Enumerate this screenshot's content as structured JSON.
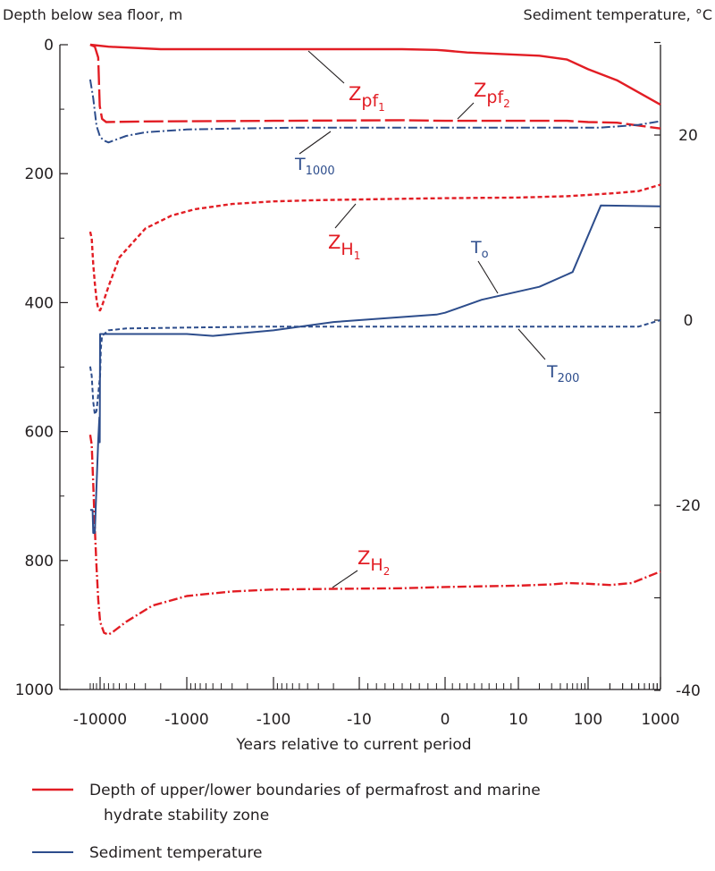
{
  "chart_data": {
    "type": "line",
    "title": "",
    "ylabel_left": "Depth below sea floor, m",
    "ylabel_right": "Sediment temperature, °C",
    "xlabel": "Years relative to current period",
    "x_scale": "symmetric log of time (log10 of years before/after the current period)",
    "x_ticks": [
      "-10000",
      "-1000",
      "-100",
      "-10",
      "0",
      "10",
      "100",
      "1000"
    ],
    "y_left_ticks": [
      "0",
      "200",
      "400",
      "600",
      "800",
      "1000"
    ],
    "y_left_range": [
      0,
      1000
    ],
    "y_left_inverted": true,
    "y_right_ticks": [
      "20",
      "0",
      "-20",
      "-40"
    ],
    "y_right_range": [
      -40,
      30
    ],
    "grid": false,
    "legend_position": "bottom",
    "legend": [
      {
        "label": "Depth of upper/lower boundaries of permafrost and marine",
        "label_cont": "hydrate stability zone",
        "color": "#e21d24"
      },
      {
        "label": "Sediment temperature",
        "color": "#2d4d8c"
      }
    ],
    "series": [
      {
        "label_main": "Z",
        "label_sub": "pf",
        "label_subsub": "1",
        "axis": "depth",
        "color": "#e21d24",
        "style": "solid",
        "points": [
          [
            -13000,
            0
          ],
          [
            -8000,
            3
          ],
          [
            -2000,
            7
          ],
          [
            -300,
            7
          ],
          [
            -30,
            7
          ],
          [
            -5,
            7
          ],
          [
            -1,
            8
          ],
          [
            0,
            9
          ],
          [
            3,
            12
          ],
          [
            20,
            17
          ],
          [
            50,
            23
          ],
          [
            100,
            38
          ],
          [
            250,
            55
          ],
          [
            1000,
            93
          ]
        ]
      },
      {
        "label_main": "Z",
        "label_sub": "pf",
        "label_subsub": "2",
        "axis": "depth",
        "color": "#e21d24",
        "style": "long-dash",
        "points": [
          [
            -13000,
            0
          ],
          [
            -11500,
            3
          ],
          [
            -10500,
            20
          ],
          [
            -10300,
            60
          ],
          [
            -10100,
            95
          ],
          [
            -9500,
            115
          ],
          [
            -8500,
            120
          ],
          [
            -3000,
            119
          ],
          [
            -100,
            118
          ],
          [
            -5,
            117
          ],
          [
            0,
            118
          ],
          [
            10,
            118
          ],
          [
            50,
            118
          ],
          [
            100,
            120
          ],
          [
            250,
            121
          ],
          [
            1000,
            130
          ]
        ]
      },
      {
        "label_main": "Z",
        "label_sub": "H",
        "label_subsub": "1",
        "axis": "depth",
        "color": "#e21d24",
        "style": "short-dash",
        "points": [
          [
            -13000,
            290
          ],
          [
            -12500,
            300
          ],
          [
            -12000,
            340
          ],
          [
            -11500,
            370
          ],
          [
            -11000,
            395
          ],
          [
            -10500,
            410
          ],
          [
            -10000,
            412
          ],
          [
            -9500,
            405
          ],
          [
            -8000,
            375
          ],
          [
            -6000,
            330
          ],
          [
            -3000,
            285
          ],
          [
            -1500,
            265
          ],
          [
            -800,
            255
          ],
          [
            -300,
            247
          ],
          [
            -100,
            243
          ],
          [
            -30,
            241
          ],
          [
            -5,
            239
          ],
          [
            0,
            238
          ],
          [
            10,
            237
          ],
          [
            50,
            235
          ],
          [
            100,
            233
          ],
          [
            250,
            230
          ],
          [
            500,
            227
          ],
          [
            1000,
            217
          ]
        ]
      },
      {
        "label_main": "Z",
        "label_sub": "H",
        "label_subsub": "2",
        "axis": "depth",
        "color": "#e21d24",
        "style": "dash-dot",
        "points": [
          [
            -13000,
            605
          ],
          [
            -12500,
            620
          ],
          [
            -12000,
            680
          ],
          [
            -11500,
            750
          ],
          [
            -11000,
            810
          ],
          [
            -10500,
            860
          ],
          [
            -10000,
            895
          ],
          [
            -9000,
            912
          ],
          [
            -8000,
            915
          ],
          [
            -7000,
            910
          ],
          [
            -5000,
            895
          ],
          [
            -2500,
            870
          ],
          [
            -1000,
            855
          ],
          [
            -300,
            848
          ],
          [
            -100,
            845
          ],
          [
            -20,
            844
          ],
          [
            -5,
            843
          ],
          [
            0,
            841
          ],
          [
            10,
            839
          ],
          [
            30,
            837
          ],
          [
            50,
            835
          ],
          [
            100,
            836
          ],
          [
            200,
            838
          ],
          [
            400,
            835
          ],
          [
            1000,
            817
          ]
        ]
      },
      {
        "label_main": "T",
        "label_sub": "1000",
        "axis": "temperature",
        "color": "#2d4d8c",
        "style": "dash-dot",
        "points": [
          [
            -13000,
            26
          ],
          [
            -12000,
            24
          ],
          [
            -11000,
            21
          ],
          [
            -10000,
            19.8
          ],
          [
            -9000,
            19.4
          ],
          [
            -8000,
            19.2
          ],
          [
            -7000,
            19.4
          ],
          [
            -5000,
            19.9
          ],
          [
            -3000,
            20.3
          ],
          [
            -1000,
            20.6
          ],
          [
            -300,
            20.7
          ],
          [
            -50,
            20.8
          ],
          [
            -5,
            20.8
          ],
          [
            0,
            20.8
          ],
          [
            10,
            20.8
          ],
          [
            50,
            20.8
          ],
          [
            150,
            20.8
          ],
          [
            500,
            21.1
          ],
          [
            1000,
            21.5
          ]
        ]
      },
      {
        "label_main": "T",
        "label_sub": "200",
        "axis": "temperature",
        "color": "#2d4d8c",
        "style": "short-dash",
        "points": [
          [
            -13000,
            -5
          ],
          [
            -12500,
            -6
          ],
          [
            -12000,
            -8.8
          ],
          [
            -11500,
            -10.2
          ],
          [
            -11000,
            -9.8
          ],
          [
            -10500,
            -8
          ],
          [
            -10000,
            -6
          ],
          [
            -9800,
            -3
          ],
          [
            -9500,
            -1.7
          ],
          [
            -8000,
            -1.1
          ],
          [
            -5000,
            -0.9
          ],
          [
            -1000,
            -0.8
          ],
          [
            -100,
            -0.7
          ],
          [
            -10,
            -0.7
          ],
          [
            0,
            -0.7
          ],
          [
            10,
            -0.7
          ],
          [
            100,
            -0.7
          ],
          [
            500,
            -0.7
          ],
          [
            1000,
            0
          ]
        ]
      },
      {
        "label_main": "T",
        "label_sub": "o",
        "axis": "temperature",
        "color": "#2d4d8c",
        "style": "solid",
        "points": [
          [
            -13000,
            -20.5
          ],
          [
            -12200,
            -20.5
          ],
          [
            -12000,
            -23
          ],
          [
            -11500,
            -23
          ],
          [
            -11200,
            -20
          ],
          [
            -10500,
            -13
          ],
          [
            -10200,
            -10.5
          ],
          [
            -10100,
            -13.2
          ],
          [
            -10000,
            -1.5
          ],
          [
            -5000,
            -1.5
          ],
          [
            -1000,
            -1.5
          ],
          [
            -500,
            -1.7
          ],
          [
            -100,
            -1.1
          ],
          [
            -20,
            -0.2
          ],
          [
            -1,
            0.6
          ],
          [
            0,
            0.8
          ],
          [
            5,
            2.2
          ],
          [
            20,
            3.6
          ],
          [
            60,
            5.2
          ],
          [
            150,
            12.4
          ],
          [
            1000,
            12.3
          ]
        ]
      }
    ]
  }
}
